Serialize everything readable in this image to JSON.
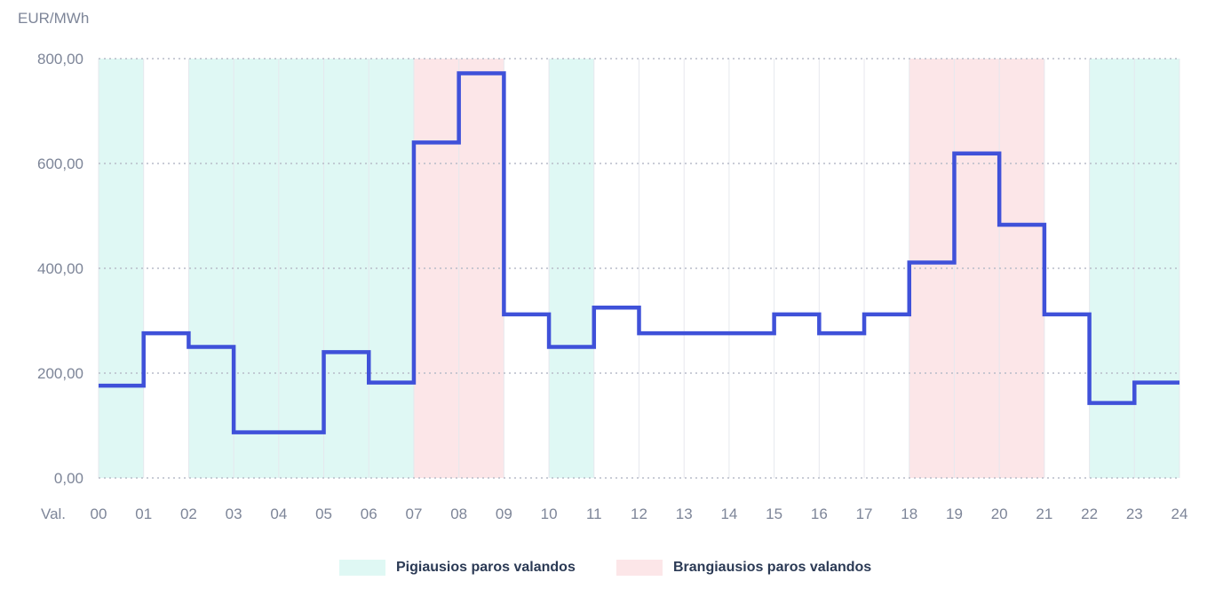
{
  "chart_data": {
    "type": "line",
    "step": true,
    "ylabel": "EUR/MWh",
    "xlabel": "Val.",
    "ylim": [
      0,
      800
    ],
    "yticks": [
      "0,00",
      "200,00",
      "400,00",
      "600,00",
      "800,00"
    ],
    "ytick_values": [
      0,
      200,
      400,
      600,
      800
    ],
    "x_ticks": [
      "00",
      "01",
      "02",
      "03",
      "04",
      "05",
      "06",
      "07",
      "08",
      "09",
      "10",
      "11",
      "12",
      "13",
      "14",
      "15",
      "16",
      "17",
      "18",
      "19",
      "20",
      "21",
      "22",
      "23",
      "24"
    ],
    "series": [
      {
        "hours": [
          "00",
          "01",
          "02",
          "03",
          "04",
          "05",
          "06",
          "07",
          "08",
          "09",
          "10",
          "11",
          "12",
          "13",
          "14",
          "15",
          "16",
          "17",
          "18",
          "19",
          "20",
          "21",
          "22",
          "23"
        ],
        "values": [
          176,
          276,
          250,
          87,
          87,
          240,
          182,
          640,
          772,
          312,
          250,
          325,
          276,
          276,
          276,
          312,
          276,
          312,
          411,
          619,
          483,
          312,
          143,
          182
        ],
        "color": "#3f51d9"
      }
    ],
    "grid": true,
    "legend_position": "bottom-center",
    "cheapest_hours": [
      "00",
      "02",
      "03",
      "04",
      "05",
      "06",
      "10",
      "22",
      "23"
    ],
    "expensive_hours": [
      "07",
      "08",
      "18",
      "19",
      "20"
    ],
    "colors": {
      "line": "#3f51d9",
      "cheap": "#dff8f4",
      "expensive": "#fce6e8",
      "grid": "#b7bcc8",
      "axis_text": "#7d8598"
    }
  },
  "legend": {
    "cheap_label": "Pigiausios paros valandos",
    "expensive_label": "Brangiausios paros valandos"
  }
}
